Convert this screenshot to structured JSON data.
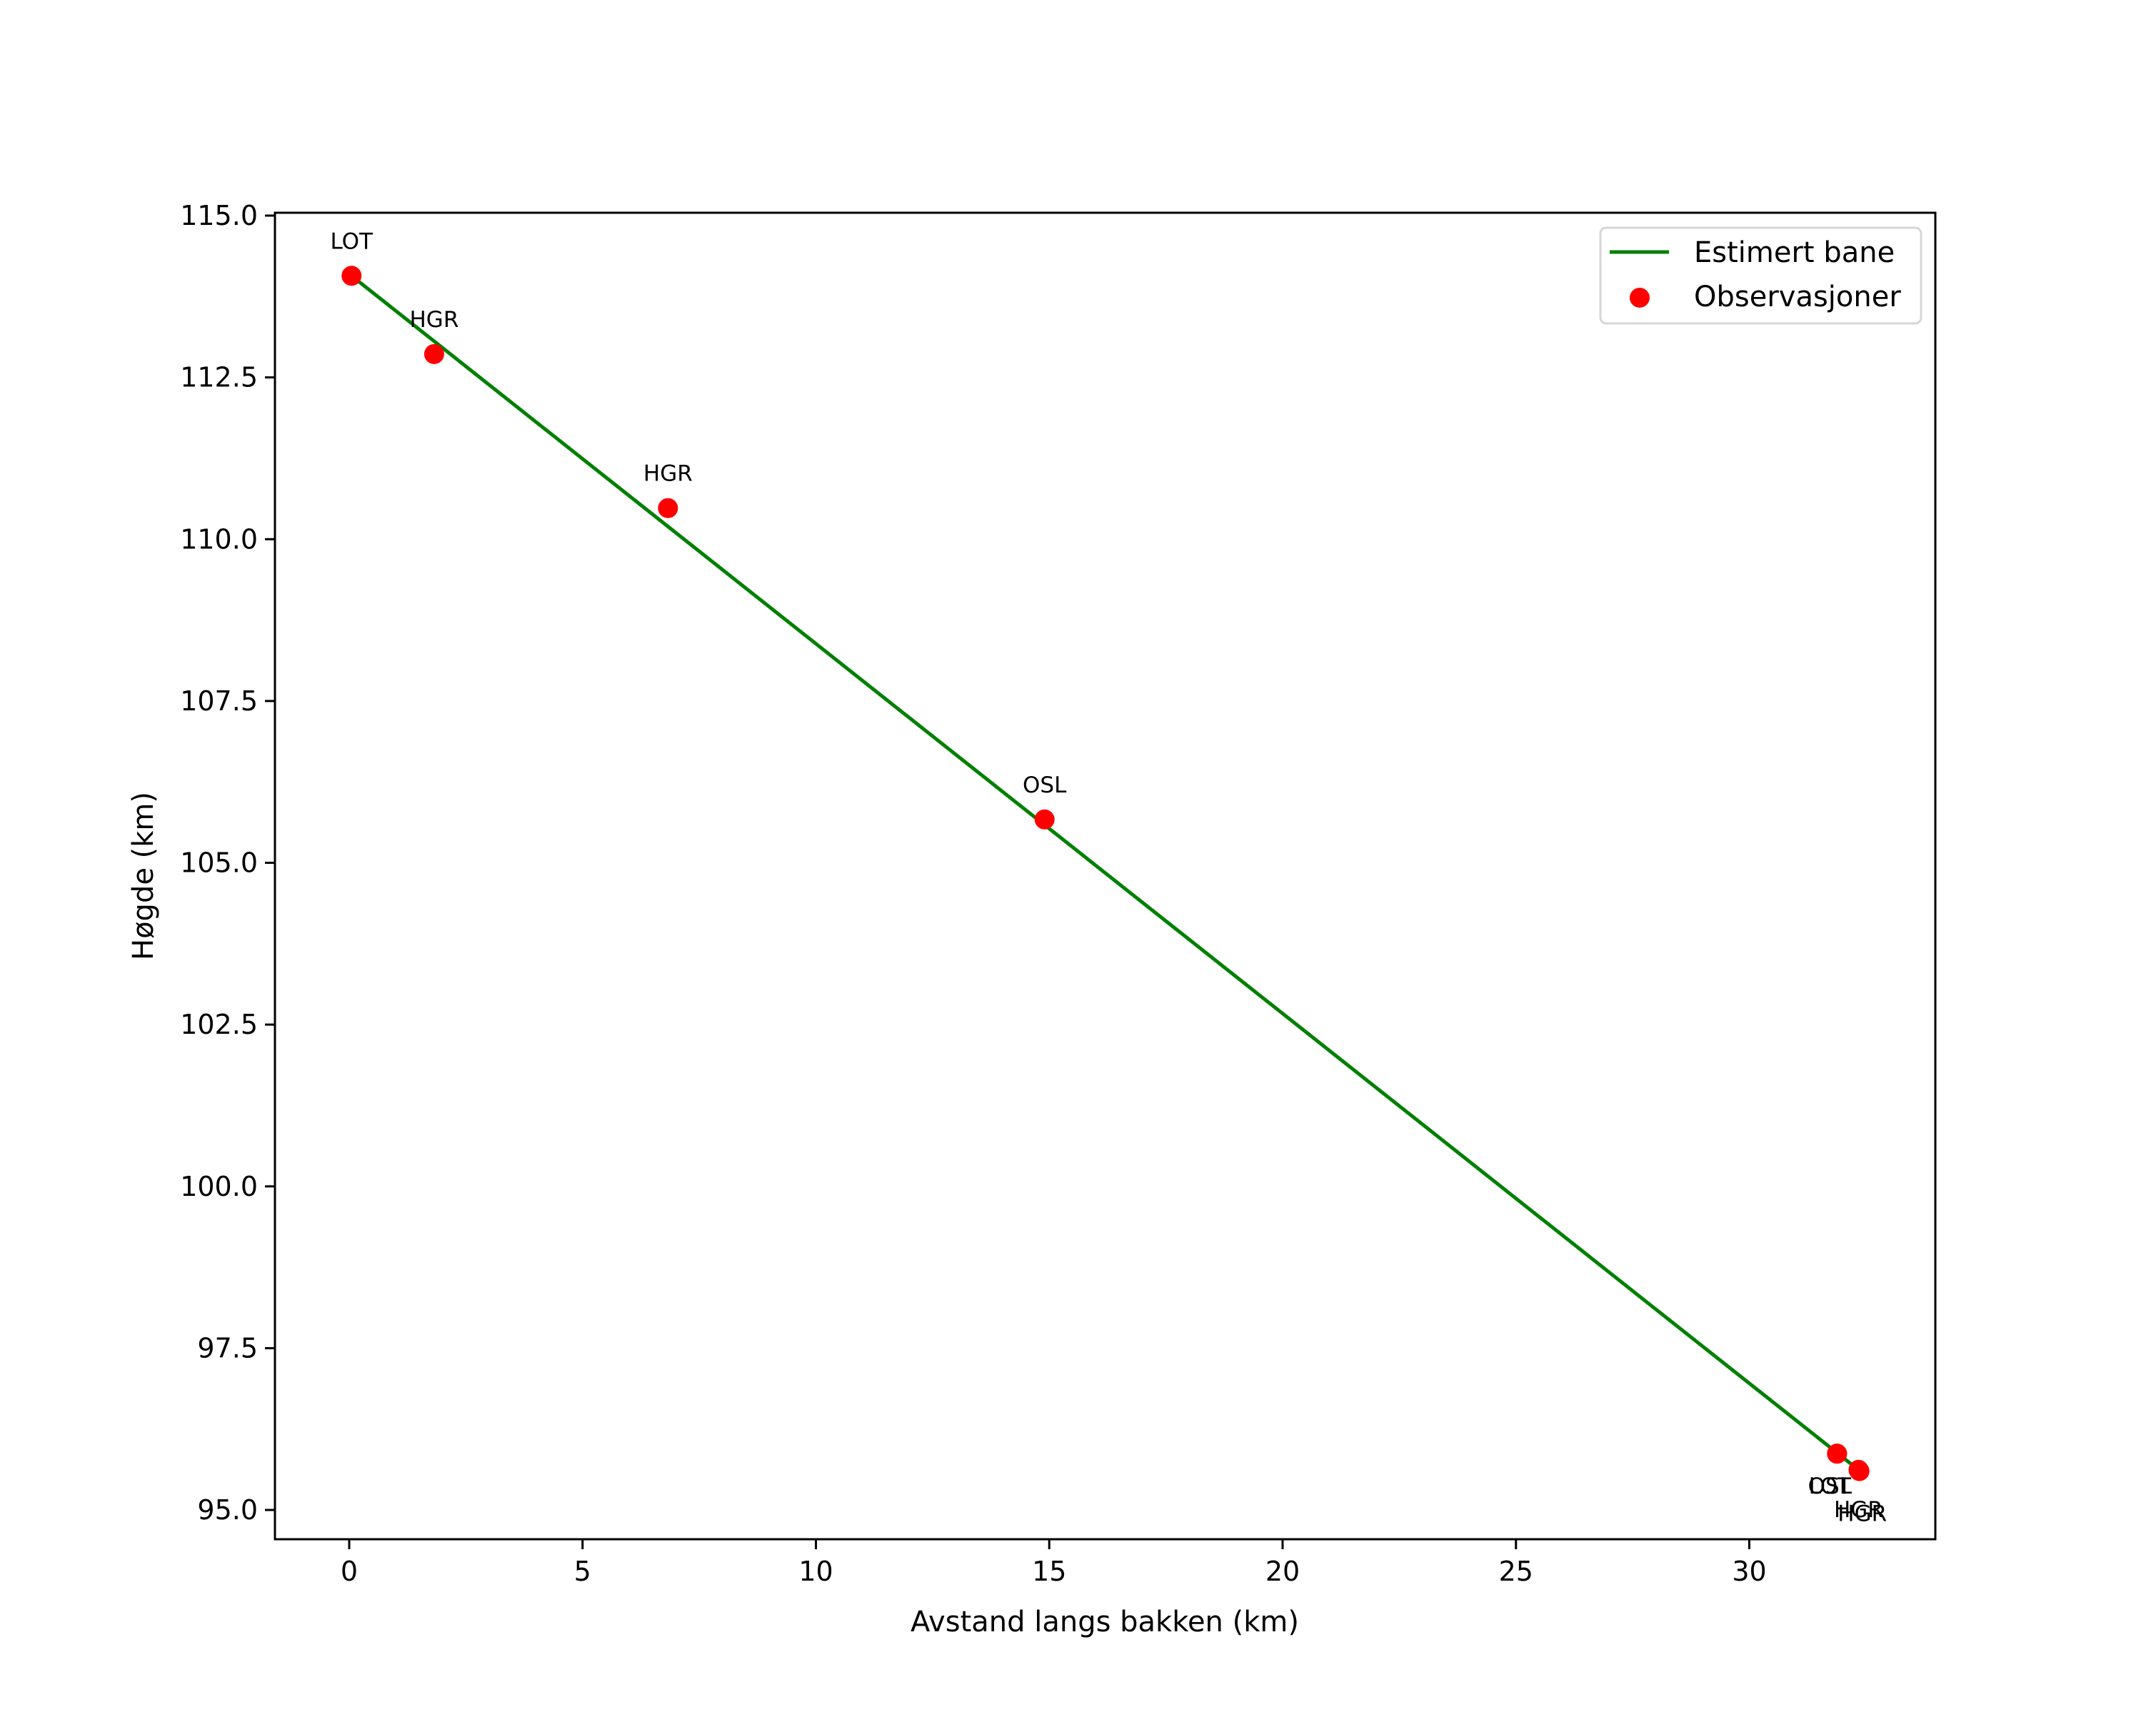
{
  "chart_data": {
    "type": "line",
    "title": "",
    "xlabel": "Avstand langs bakken (km)",
    "ylabel": "Høgde (km)",
    "xlim": [
      -1.6,
      34.0
    ],
    "ylim": [
      94.55,
      115.05
    ],
    "xticks": [
      0,
      5,
      10,
      15,
      20,
      25,
      30
    ],
    "xtick_labels": [
      "0",
      "5",
      "10",
      "15",
      "20",
      "25",
      "30"
    ],
    "yticks": [
      95.0,
      97.5,
      100.0,
      102.5,
      105.0,
      107.5,
      110.0,
      112.5,
      115.0
    ],
    "ytick_labels": [
      "95.0",
      "97.5",
      "100.0",
      "102.5",
      "105.0",
      "107.5",
      "110.0",
      "112.5",
      "115.0"
    ],
    "grid": false,
    "legend_position": "upper right",
    "series": [
      {
        "name": "Estimert bane",
        "type": "line",
        "color": "#008000",
        "x": [
          0.05,
          32.34
        ],
        "y": [
          114.07,
          95.62
        ]
      },
      {
        "name": "Observasjoner",
        "type": "scatter",
        "color": "#ff0000",
        "points": [
          {
            "x": 0.05,
            "y": 114.07,
            "label": "LOT"
          },
          {
            "x": 1.82,
            "y": 112.86,
            "label": "HGR"
          },
          {
            "x": 6.83,
            "y": 110.48,
            "label": "HGR"
          },
          {
            "x": 14.9,
            "y": 105.67,
            "label": "OSL"
          },
          {
            "x": 31.88,
            "y": 95.87,
            "label": "OSL"
          },
          {
            "x": 31.88,
            "y": 95.87,
            "label": "LOT"
          },
          {
            "x": 32.34,
            "y": 95.62,
            "label": "HGR"
          },
          {
            "x": 32.36,
            "y": 95.6,
            "label": "HGR"
          }
        ]
      }
    ]
  },
  "legend": {
    "items": [
      {
        "label": "Estimert bane",
        "color": "#008000",
        "marker": "line"
      },
      {
        "label": "Observasjoner",
        "color": "#ff0000",
        "marker": "dot"
      }
    ]
  }
}
